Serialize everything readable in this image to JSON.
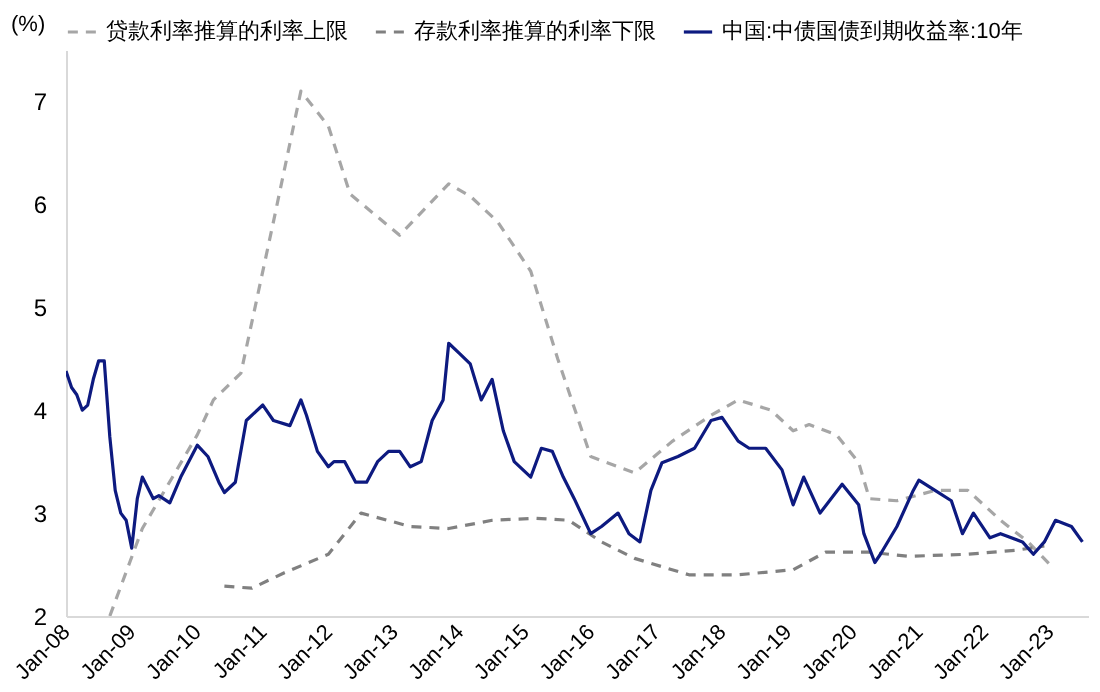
{
  "chart_data": {
    "type": "line",
    "ylabel": "(%)",
    "xlim": [
      "2008-01",
      "2023-08"
    ],
    "ylim": [
      2,
      7.5
    ],
    "yticks": [
      2,
      3,
      4,
      5,
      6,
      7
    ],
    "xticks": [
      {
        "value": "2008-01",
        "label": "Jan-08"
      },
      {
        "value": "2009-01",
        "label": "Jan-09"
      },
      {
        "value": "2010-01",
        "label": "Jan-10"
      },
      {
        "value": "2011-01",
        "label": "Jan-11"
      },
      {
        "value": "2012-01",
        "label": "Jan-12"
      },
      {
        "value": "2013-01",
        "label": "Jan-13"
      },
      {
        "value": "2014-01",
        "label": "Jan-14"
      },
      {
        "value": "2015-01",
        "label": "Jan-15"
      },
      {
        "value": "2016-01",
        "label": "Jan-16"
      },
      {
        "value": "2017-01",
        "label": "Jan-17"
      },
      {
        "value": "2018-01",
        "label": "Jan-18"
      },
      {
        "value": "2019-01",
        "label": "Jan-19"
      },
      {
        "value": "2020-01",
        "label": "Jan-20"
      },
      {
        "value": "2021-01",
        "label": "Jan-21"
      },
      {
        "value": "2022-01",
        "label": "Jan-22"
      },
      {
        "value": "2023-01",
        "label": "Jan-23"
      }
    ],
    "legend": "top",
    "grid": false,
    "series": [
      {
        "name": "贷款利率推算的利率上限",
        "color": "#a6a6a6",
        "line_style": "dashed",
        "x": [
          "2008-09",
          "2009-03",
          "2010-01",
          "2010-04",
          "2010-09",
          "2011-03",
          "2011-08",
          "2012-01",
          "2012-05",
          "2013-02",
          "2013-11",
          "2014-03",
          "2014-08",
          "2015-02",
          "2015-07",
          "2016-01",
          "2016-09",
          "2017-04",
          "2017-11",
          "2018-04",
          "2018-10",
          "2019-02",
          "2019-05",
          "2019-10",
          "2020-02",
          "2020-04",
          "2020-09",
          "2021-04",
          "2021-10",
          "2022-04",
          "2022-09",
          "2023-01"
        ],
        "values": [
          2.0,
          2.85,
          3.76,
          4.1,
          4.36,
          5.83,
          7.1,
          6.76,
          6.1,
          5.7,
          6.2,
          6.08,
          5.83,
          5.35,
          4.5,
          3.55,
          3.39,
          3.7,
          3.95,
          4.1,
          4.0,
          3.8,
          3.86,
          3.76,
          3.49,
          3.14,
          3.12,
          3.22,
          3.22,
          2.93,
          2.72,
          2.5
        ]
      },
      {
        "name": "存款利率推算的利率下限",
        "color": "#808080",
        "line_style": "dashed",
        "x": [
          "2010-06",
          "2010-11",
          "2011-05",
          "2012-01",
          "2012-07",
          "2013-04",
          "2013-11",
          "2014-07",
          "2015-03",
          "2015-09",
          "2016-03",
          "2016-09",
          "2017-07",
          "2018-04",
          "2019-02",
          "2019-08",
          "2020-04",
          "2020-11",
          "2021-10",
          "2022-07",
          "2022-12"
        ],
        "values": [
          2.29,
          2.27,
          2.42,
          2.6,
          3.0,
          2.87,
          2.85,
          2.93,
          2.95,
          2.93,
          2.72,
          2.56,
          2.4,
          2.4,
          2.45,
          2.62,
          2.62,
          2.58,
          2.6,
          2.64,
          2.68
        ]
      },
      {
        "name": "中国:中债国债到期收益率:10年",
        "color": "#0d1a80",
        "line_style": "solid",
        "x": [
          "2008-01",
          "2008-02",
          "2008-03",
          "2008-04",
          "2008-05",
          "2008-06",
          "2008-07",
          "2008-08",
          "2008-09",
          "2008-10",
          "2008-11",
          "2008-12",
          "2009-01",
          "2009-02",
          "2009-03",
          "2009-05",
          "2009-06",
          "2009-08",
          "2009-10",
          "2010-01",
          "2010-03",
          "2010-05",
          "2010-06",
          "2010-08",
          "2010-10",
          "2011-01",
          "2011-03",
          "2011-06",
          "2011-08",
          "2011-09",
          "2011-11",
          "2012-01",
          "2012-02",
          "2012-04",
          "2012-06",
          "2012-08",
          "2012-10",
          "2012-12",
          "2013-02",
          "2013-04",
          "2013-06",
          "2013-08",
          "2013-10",
          "2013-11",
          "2014-01",
          "2014-03",
          "2014-05",
          "2014-07",
          "2014-09",
          "2014-11",
          "2015-02",
          "2015-04",
          "2015-06",
          "2015-08",
          "2015-10",
          "2016-01",
          "2016-03",
          "2016-06",
          "2016-08",
          "2016-10",
          "2016-12",
          "2017-02",
          "2017-05",
          "2017-08",
          "2017-11",
          "2018-01",
          "2018-04",
          "2018-06",
          "2018-09",
          "2018-12",
          "2019-02",
          "2019-04",
          "2019-07",
          "2019-11",
          "2020-02",
          "2020-03",
          "2020-05",
          "2020-06",
          "2020-09",
          "2020-12",
          "2021-01",
          "2021-04",
          "2021-07",
          "2021-09",
          "2021-11",
          "2022-02",
          "2022-04",
          "2022-08",
          "2022-10",
          "2022-12",
          "2023-02",
          "2023-05",
          "2023-07"
        ],
        "values": [
          4.38,
          4.22,
          4.15,
          4.0,
          4.05,
          4.3,
          4.48,
          4.48,
          3.74,
          3.22,
          3.0,
          2.93,
          2.66,
          3.14,
          3.35,
          3.14,
          3.17,
          3.1,
          3.35,
          3.66,
          3.55,
          3.3,
          3.2,
          3.3,
          3.9,
          4.05,
          3.9,
          3.85,
          4.1,
          3.95,
          3.6,
          3.45,
          3.5,
          3.5,
          3.3,
          3.3,
          3.5,
          3.6,
          3.6,
          3.45,
          3.5,
          3.9,
          4.1,
          4.65,
          4.55,
          4.45,
          4.1,
          4.3,
          3.8,
          3.5,
          3.35,
          3.63,
          3.6,
          3.35,
          3.14,
          2.8,
          2.87,
          3.0,
          2.8,
          2.72,
          3.22,
          3.49,
          3.55,
          3.63,
          3.9,
          3.93,
          3.7,
          3.63,
          3.63,
          3.42,
          3.08,
          3.35,
          3.0,
          3.28,
          3.08,
          2.8,
          2.52,
          2.6,
          2.87,
          3.22,
          3.32,
          3.22,
          3.12,
          2.8,
          3.0,
          2.76,
          2.8,
          2.72,
          2.6,
          2.72,
          2.93,
          2.87,
          2.72
        ]
      }
    ]
  }
}
